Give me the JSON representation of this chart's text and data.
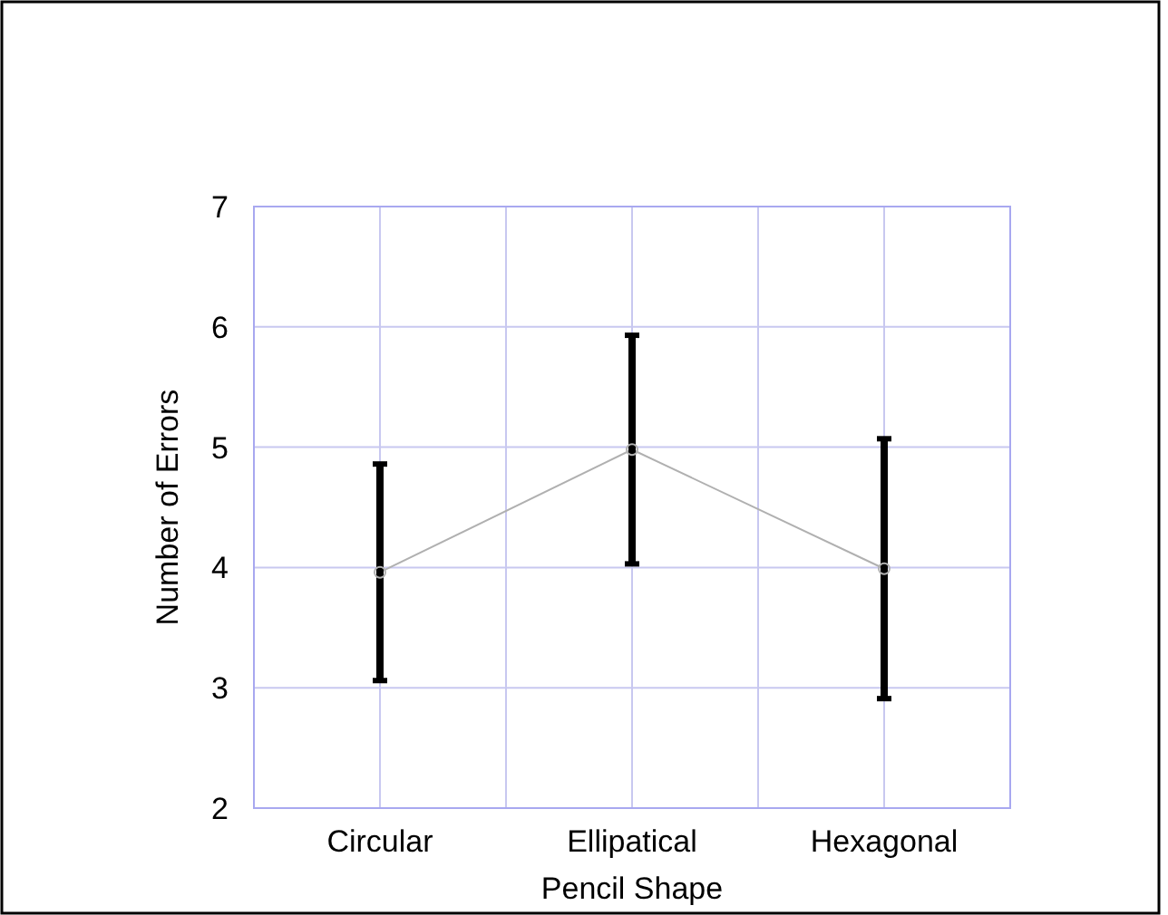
{
  "chart_data": {
    "type": "line",
    "xlabel": "Pencil Shape",
    "ylabel": "Number of Errors",
    "categories": [
      "Circular",
      "Ellipatical",
      "Hexagonal"
    ],
    "series": [
      {
        "color": "#b0b0b0",
        "values": [
          3.96,
          4.98,
          3.99
        ],
        "errors": [
          0.9,
          0.95,
          1.08
        ]
      }
    ],
    "ylim": [
      2,
      7
    ],
    "yticks": [
      2,
      3,
      4,
      5,
      6,
      7
    ],
    "grid": true,
    "marker": "circle",
    "line_style": "solid"
  }
}
